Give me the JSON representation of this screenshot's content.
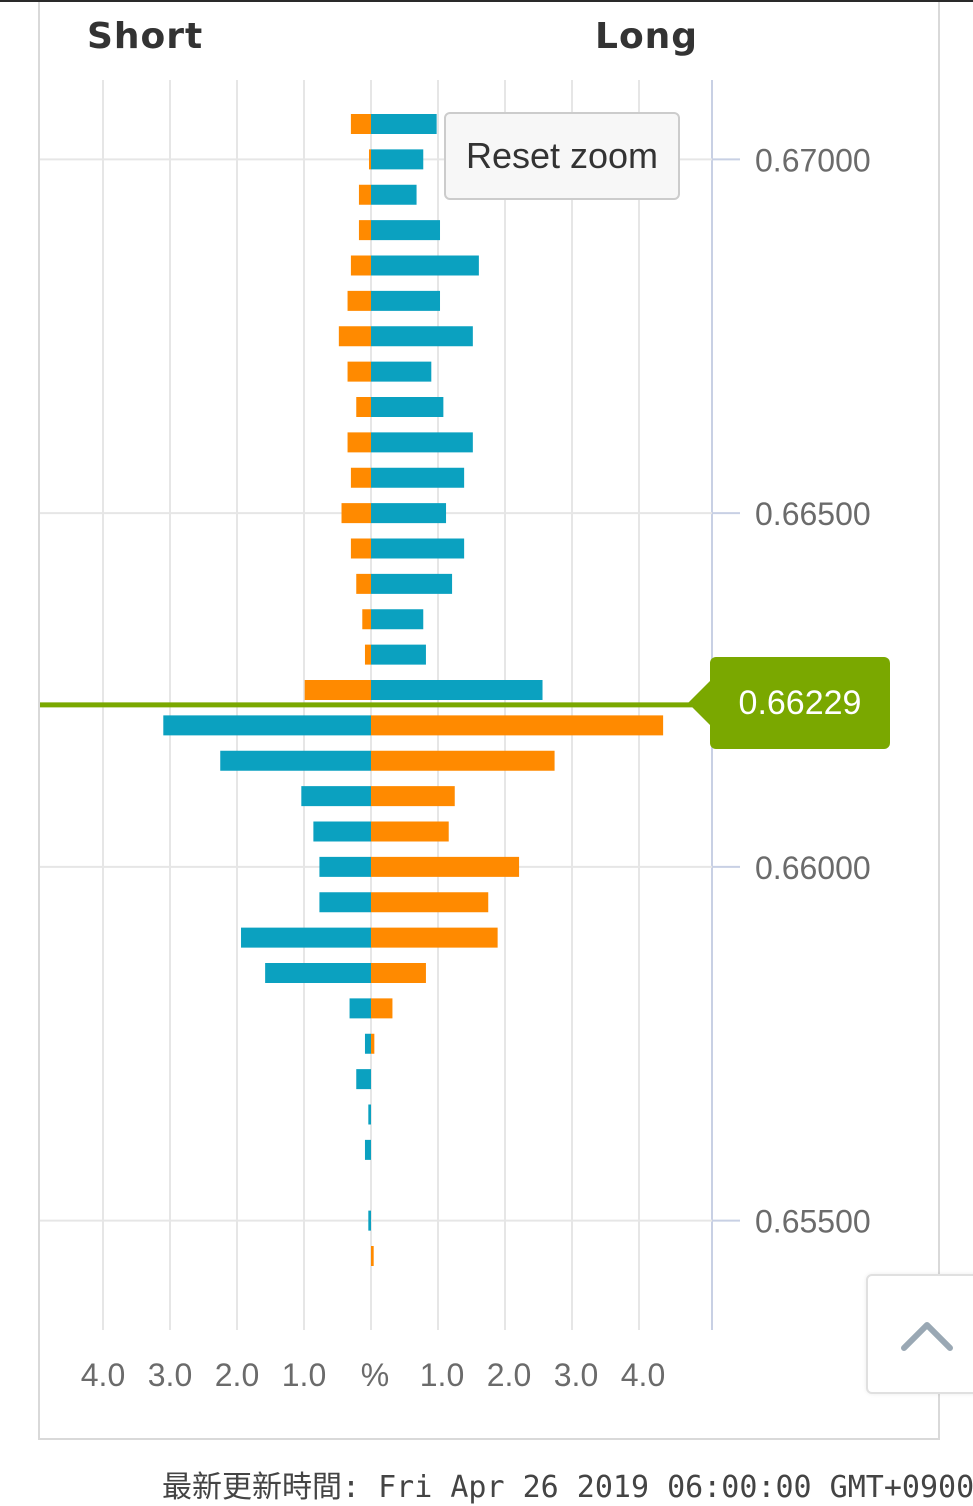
{
  "header": {
    "short_label": "Short",
    "long_label": "Long"
  },
  "reset_zoom_label": "Reset zoom",
  "current_price": "0.66229",
  "footer_text": "最新更新時間: Fri Apr 26 2019 06:00:00 GMT+0900",
  "colors": {
    "teal": "#0ba1c0",
    "orange": "#ff8a00",
    "price_line": "#7aa800",
    "grid": "#e6e6e6",
    "axis": "#c8d0e4"
  },
  "icons": {
    "scroll_top": "chevron-up-icon"
  },
  "chart_data": {
    "type": "bar",
    "orientation": "horizontal-butterfly",
    "y_axis": {
      "ticks": [
        "0.67000",
        "0.66500",
        "0.66000",
        "0.65500"
      ],
      "range": [
        0.6536,
        0.6712
      ]
    },
    "x_axis": {
      "left_ticks": [
        "4.0",
        "3.0",
        "2.0",
        "1.0"
      ],
      "center_label": "%",
      "right_ticks": [
        "1.0",
        "2.0",
        "3.0",
        "4.0"
      ],
      "range": [
        -4.9,
        5.0
      ]
    },
    "current_price": 0.66229,
    "bars": [
      {
        "price": 0.6705,
        "short": 0.3,
        "long": 0.98,
        "short_color": "orange",
        "long_color": "teal"
      },
      {
        "price": 0.67,
        "short": 0.03,
        "long": 0.78,
        "short_color": "orange",
        "long_color": "teal"
      },
      {
        "price": 0.6695,
        "short": 0.18,
        "long": 0.68,
        "short_color": "orange",
        "long_color": "teal"
      },
      {
        "price": 0.669,
        "short": 0.18,
        "long": 1.03,
        "short_color": "orange",
        "long_color": "teal"
      },
      {
        "price": 0.6685,
        "short": 0.3,
        "long": 1.61,
        "short_color": "orange",
        "long_color": "teal"
      },
      {
        "price": 0.668,
        "short": 0.35,
        "long": 1.03,
        "short_color": "orange",
        "long_color": "teal"
      },
      {
        "price": 0.6675,
        "short": 0.48,
        "long": 1.52,
        "short_color": "orange",
        "long_color": "teal"
      },
      {
        "price": 0.667,
        "short": 0.35,
        "long": 0.9,
        "short_color": "orange",
        "long_color": "teal"
      },
      {
        "price": 0.6665,
        "short": 0.22,
        "long": 1.08,
        "short_color": "orange",
        "long_color": "teal"
      },
      {
        "price": 0.666,
        "short": 0.35,
        "long": 1.52,
        "short_color": "orange",
        "long_color": "teal"
      },
      {
        "price": 0.6655,
        "short": 0.3,
        "long": 1.39,
        "short_color": "orange",
        "long_color": "teal"
      },
      {
        "price": 0.665,
        "short": 0.44,
        "long": 1.12,
        "short_color": "orange",
        "long_color": "teal"
      },
      {
        "price": 0.6645,
        "short": 0.3,
        "long": 1.39,
        "short_color": "orange",
        "long_color": "teal"
      },
      {
        "price": 0.664,
        "short": 0.22,
        "long": 1.21,
        "short_color": "orange",
        "long_color": "teal"
      },
      {
        "price": 0.6635,
        "short": 0.13,
        "long": 0.78,
        "short_color": "orange",
        "long_color": "teal"
      },
      {
        "price": 0.663,
        "short": 0.09,
        "long": 0.82,
        "short_color": "orange",
        "long_color": "teal"
      },
      {
        "price": 0.6625,
        "short": 0.99,
        "long": 2.56,
        "short_color": "orange",
        "long_color": "teal"
      },
      {
        "price": 0.662,
        "short": 3.1,
        "long": 4.36,
        "short_color": "teal",
        "long_color": "orange"
      },
      {
        "price": 0.6615,
        "short": 2.25,
        "long": 2.74,
        "short_color": "teal",
        "long_color": "orange"
      },
      {
        "price": 0.661,
        "short": 1.04,
        "long": 1.25,
        "short_color": "teal",
        "long_color": "orange"
      },
      {
        "price": 0.6605,
        "short": 0.86,
        "long": 1.16,
        "short_color": "teal",
        "long_color": "orange"
      },
      {
        "price": 0.66,
        "short": 0.77,
        "long": 2.21,
        "short_color": "teal",
        "long_color": "orange"
      },
      {
        "price": 0.6595,
        "short": 0.77,
        "long": 1.75,
        "short_color": "teal",
        "long_color": "orange"
      },
      {
        "price": 0.659,
        "short": 1.94,
        "long": 1.89,
        "short_color": "teal",
        "long_color": "orange"
      },
      {
        "price": 0.6585,
        "short": 1.58,
        "long": 0.82,
        "short_color": "teal",
        "long_color": "orange"
      },
      {
        "price": 0.658,
        "short": 0.32,
        "long": 0.32,
        "short_color": "teal",
        "long_color": "orange"
      },
      {
        "price": 0.6575,
        "short": 0.09,
        "long": 0.05,
        "short_color": "teal",
        "long_color": "orange"
      },
      {
        "price": 0.657,
        "short": 0.22,
        "long": 0.0,
        "short_color": "teal",
        "long_color": "orange"
      },
      {
        "price": 0.6565,
        "short": 0.04,
        "long": 0.0,
        "short_color": "teal",
        "long_color": "orange"
      },
      {
        "price": 0.656,
        "short": 0.09,
        "long": 0.0,
        "short_color": "teal",
        "long_color": "orange"
      },
      {
        "price": 0.655,
        "short": 0.04,
        "long": 0.0,
        "short_color": "teal",
        "long_color": "orange"
      },
      {
        "price": 0.6545,
        "short": 0.0,
        "long": 0.04,
        "short_color": "teal",
        "long_color": "orange"
      }
    ]
  }
}
